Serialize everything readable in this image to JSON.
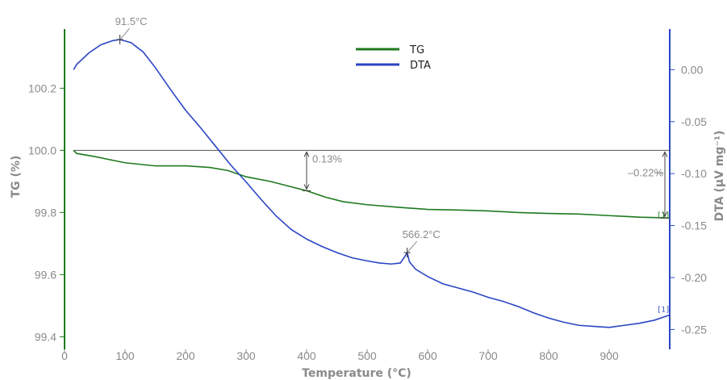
{
  "chart_data": {
    "type": "line",
    "xlabel": "Temperature (°C)",
    "ylabel_left": "TG (%)",
    "ylabel_right": "DTA (µV mg⁻¹)",
    "xlim": [
      0,
      1000
    ],
    "ylim_left": [
      99.37,
      100.38
    ],
    "ylim_right": [
      -0.266,
      0.036
    ],
    "x_ticks": [
      "0",
      "100",
      "200",
      "300",
      "400",
      "500",
      "600",
      "700",
      "800",
      "900"
    ],
    "y_left_ticks": [
      "99.4",
      "99.6",
      "99.8",
      "100.0",
      "100.2"
    ],
    "y_right_ticks": [
      "-0.25",
      "-0.20",
      "-0.15",
      "-0.10",
      "-0.05",
      "0.00"
    ],
    "legend_position": "top-center",
    "colors": {
      "TG": "#1e7a1e",
      "DTA": "#2b45c4",
      "axis_left": "#1e7a1e",
      "axis_right": "#2b45c4",
      "annotation": "#8a8a8a",
      "baseline": "#555555"
    },
    "series": [
      {
        "name": "TG",
        "axis": "left",
        "x": [
          15,
          20,
          50,
          100,
          150,
          200,
          240,
          270,
          300,
          340,
          370,
          400,
          430,
          460,
          500,
          550,
          600,
          650,
          700,
          750,
          800,
          850,
          900,
          950,
          990,
          1000
        ],
        "y": [
          100.0,
          99.99,
          99.98,
          99.96,
          99.95,
          99.95,
          99.945,
          99.935,
          99.915,
          99.9,
          99.885,
          99.87,
          99.85,
          99.835,
          99.825,
          99.817,
          99.81,
          99.808,
          99.805,
          99.8,
          99.797,
          99.795,
          99.79,
          99.785,
          99.783,
          99.782
        ]
      },
      {
        "name": "DTA",
        "axis": "right",
        "x": [
          15,
          20,
          40,
          60,
          80,
          91.5,
          110,
          130,
          150,
          175,
          200,
          225,
          250,
          275,
          300,
          325,
          350,
          375,
          400,
          425,
          450,
          475,
          500,
          520,
          540,
          555,
          562,
          566.2,
          570,
          580,
          600,
          625,
          650,
          675,
          700,
          725,
          750,
          775,
          800,
          825,
          850,
          875,
          900,
          925,
          950,
          975,
          1000
        ],
        "y": [
          0.0,
          0.005,
          0.016,
          0.024,
          0.028,
          0.029,
          0.026,
          0.017,
          0.002,
          -0.019,
          -0.039,
          -0.056,
          -0.074,
          -0.092,
          -0.108,
          -0.125,
          -0.141,
          -0.154,
          -0.163,
          -0.17,
          -0.176,
          -0.181,
          -0.184,
          -0.186,
          -0.187,
          -0.186,
          -0.18,
          -0.176,
          -0.185,
          -0.192,
          -0.199,
          -0.206,
          -0.21,
          -0.214,
          -0.219,
          -0.223,
          -0.228,
          -0.234,
          -0.239,
          -0.243,
          -0.246,
          -0.247,
          -0.248,
          -0.246,
          -0.244,
          -0.241,
          -0.236
        ]
      }
    ],
    "annotations": [
      {
        "label": "91.5°C",
        "series": "DTA",
        "x": 91.5,
        "y": 0.029
      },
      {
        "label": "566.2°C",
        "series": "DTA",
        "x": 566.2,
        "y": -0.176
      },
      {
        "label": "0.13%",
        "series": "TG",
        "x": 400,
        "y_from": 100.0,
        "y_to": 99.87
      },
      {
        "label": "–0.22%",
        "series": "TG",
        "x": 1000,
        "y_from": 100.0,
        "y_to": 99.782
      }
    ],
    "end_markers": {
      "TG": "[1]",
      "DTA": "[1]"
    }
  }
}
